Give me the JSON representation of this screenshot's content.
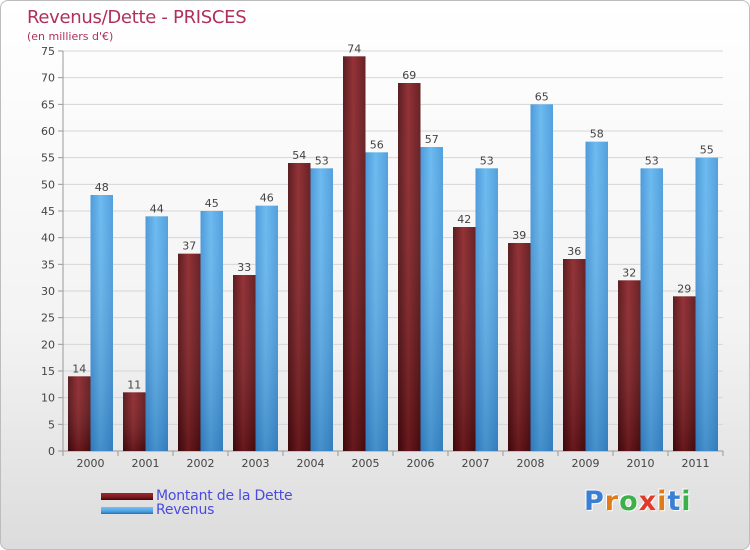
{
  "title": "Revenus/Dette - PRISCES",
  "subtitle": "(en milliers d'€)",
  "legend": {
    "debt_label": "Montant de la Dette",
    "revenue_label": "Revenus"
  },
  "logo": {
    "text": "Proxiti",
    "letters": [
      "P",
      "r",
      "o",
      "x",
      "i",
      "t",
      "i"
    ],
    "colors": [
      "#3b7fd4",
      "#e07b1a",
      "#3db04a",
      "#e03a2a",
      "#e07b1a",
      "#3b7fd4",
      "#3db04a"
    ]
  },
  "colors": {
    "debt": "#7a1a1e",
    "revenue": "#4aa3e6",
    "title": "#b0305a",
    "legend_text": "#4a4adf"
  },
  "chart_data": {
    "type": "bar",
    "title": "Revenus/Dette - PRISCES",
    "subtitle": "(en milliers d'€)",
    "categories": [
      "2000",
      "2001",
      "2002",
      "2003",
      "2004",
      "2005",
      "2006",
      "2007",
      "2008",
      "2009",
      "2010",
      "2011"
    ],
    "series": [
      {
        "name": "Montant de la Dette",
        "values": [
          14,
          11,
          37,
          33,
          54,
          74,
          69,
          42,
          39,
          36,
          32,
          29
        ]
      },
      {
        "name": "Revenus",
        "values": [
          48,
          44,
          45,
          46,
          53,
          56,
          57,
          53,
          65,
          58,
          53,
          55
        ]
      }
    ],
    "ylim": [
      0,
      75
    ],
    "yticks": [
      0,
      5,
      10,
      15,
      20,
      25,
      30,
      35,
      40,
      45,
      50,
      55,
      60,
      65,
      70,
      75
    ],
    "grid": true,
    "legend_position": "bottom-left"
  }
}
